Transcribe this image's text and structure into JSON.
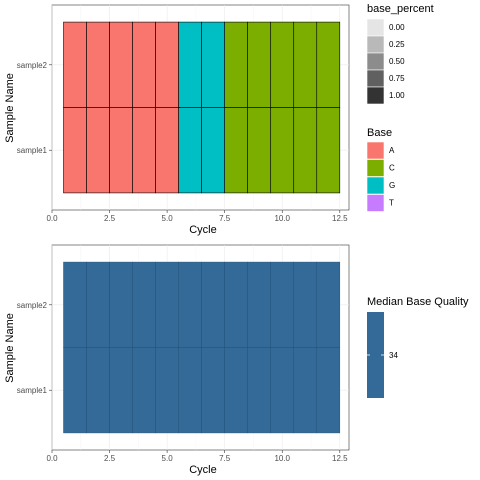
{
  "chart_data": [
    {
      "type": "heatmap",
      "xlabel": "Cycle",
      "ylabel": "Sample Name",
      "xlim": [
        0,
        12.9
      ],
      "x_ticks": [
        {
          "value": 0,
          "label": "0.0"
        },
        {
          "value": 2.5,
          "label": "2.5"
        },
        {
          "value": 5,
          "label": "5.0"
        },
        {
          "value": 7.5,
          "label": "7.5"
        },
        {
          "value": 10,
          "label": "10.0"
        },
        {
          "value": 12.5,
          "label": "12.5"
        }
      ],
      "categories": [
        "sample1",
        "sample2"
      ],
      "x": [
        1,
        2,
        3,
        4,
        5,
        6,
        7,
        8,
        9,
        10,
        11,
        12
      ],
      "series": [
        {
          "sample": "sample1",
          "base": [
            "A",
            "A",
            "A",
            "A",
            "A",
            "G",
            "G",
            "C",
            "C",
            "C",
            "C",
            "C"
          ],
          "base_percent": [
            1,
            1,
            1,
            1,
            1,
            1,
            1,
            1,
            1,
            1,
            1,
            1
          ]
        },
        {
          "sample": "sample2",
          "base": [
            "A",
            "A",
            "A",
            "A",
            "A",
            "G",
            "G",
            "C",
            "C",
            "C",
            "C",
            "C"
          ],
          "base_percent": [
            1,
            1,
            1,
            1,
            1,
            1,
            1,
            1,
            1,
            1,
            1,
            1
          ]
        }
      ],
      "legend_alpha": {
        "title": "base_percent",
        "values": [
          0,
          0.25,
          0.5,
          0.75,
          1
        ],
        "labels": [
          "0.00",
          "0.25",
          "0.50",
          "0.75",
          "1.00"
        ]
      },
      "legend_fill": {
        "title": "Base",
        "entries": [
          {
            "label": "A",
            "color": "#F8766D"
          },
          {
            "label": "C",
            "color": "#7CAE00"
          },
          {
            "label": "G",
            "color": "#00BFC4"
          },
          {
            "label": "T",
            "color": "#C77CFF"
          }
        ]
      },
      "grid": true,
      "legend_position": "right"
    },
    {
      "type": "heatmap",
      "xlabel": "Cycle",
      "ylabel": "Sample Name",
      "xlim": [
        0,
        12.9
      ],
      "x_ticks": [
        {
          "value": 0,
          "label": "0.0"
        },
        {
          "value": 2.5,
          "label": "2.5"
        },
        {
          "value": 5,
          "label": "5.0"
        },
        {
          "value": 7.5,
          "label": "7.5"
        },
        {
          "value": 10,
          "label": "10.0"
        },
        {
          "value": 12.5,
          "label": "12.5"
        }
      ],
      "categories": [
        "sample1",
        "sample2"
      ],
      "x": [
        1,
        2,
        3,
        4,
        5,
        6,
        7,
        8,
        9,
        10,
        11,
        12
      ],
      "series": [
        {
          "sample": "sample1",
          "values": [
            34,
            34,
            34,
            34,
            34,
            34,
            34,
            34,
            34,
            34,
            34,
            34
          ]
        },
        {
          "sample": "sample2",
          "values": [
            34,
            34,
            34,
            34,
            34,
            34,
            34,
            34,
            34,
            34,
            34,
            34
          ]
        }
      ],
      "fill_color": "#336A98",
      "legend": {
        "title": "Median Base Quality",
        "ticks": [
          {
            "value": 34,
            "label": "34"
          }
        ]
      },
      "grid": true,
      "legend_position": "right"
    }
  ]
}
